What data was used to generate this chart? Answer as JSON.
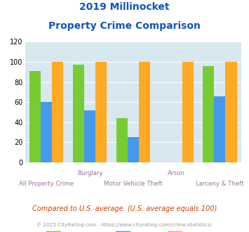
{
  "title_line1": "2019 Millinocket",
  "title_line2": "Property Crime Comparison",
  "categories": [
    "All Property Crime",
    "Burglary",
    "Motor Vehicle Theft",
    "Arson",
    "Larceny & Theft"
  ],
  "millinocket": [
    91,
    97,
    44,
    0,
    96
  ],
  "maine": [
    60,
    52,
    25,
    0,
    66
  ],
  "national": [
    100,
    100,
    100,
    100,
    100
  ],
  "color_millinocket": "#77cc33",
  "color_maine": "#4499ee",
  "color_national": "#ffaa22",
  "ylim": [
    0,
    120
  ],
  "yticks": [
    0,
    20,
    40,
    60,
    80,
    100,
    120
  ],
  "bg_color": "#d8e8f0",
  "footnote1": "Compared to U.S. average. (U.S. average equals 100)",
  "footnote2": "© 2025 CityRating.com - https://www.cityrating.com/crime-statistics/",
  "title_color": "#1155bb",
  "footnote1_color": "#cc4400",
  "footnote2_color": "#999999",
  "label_color": "#997799"
}
